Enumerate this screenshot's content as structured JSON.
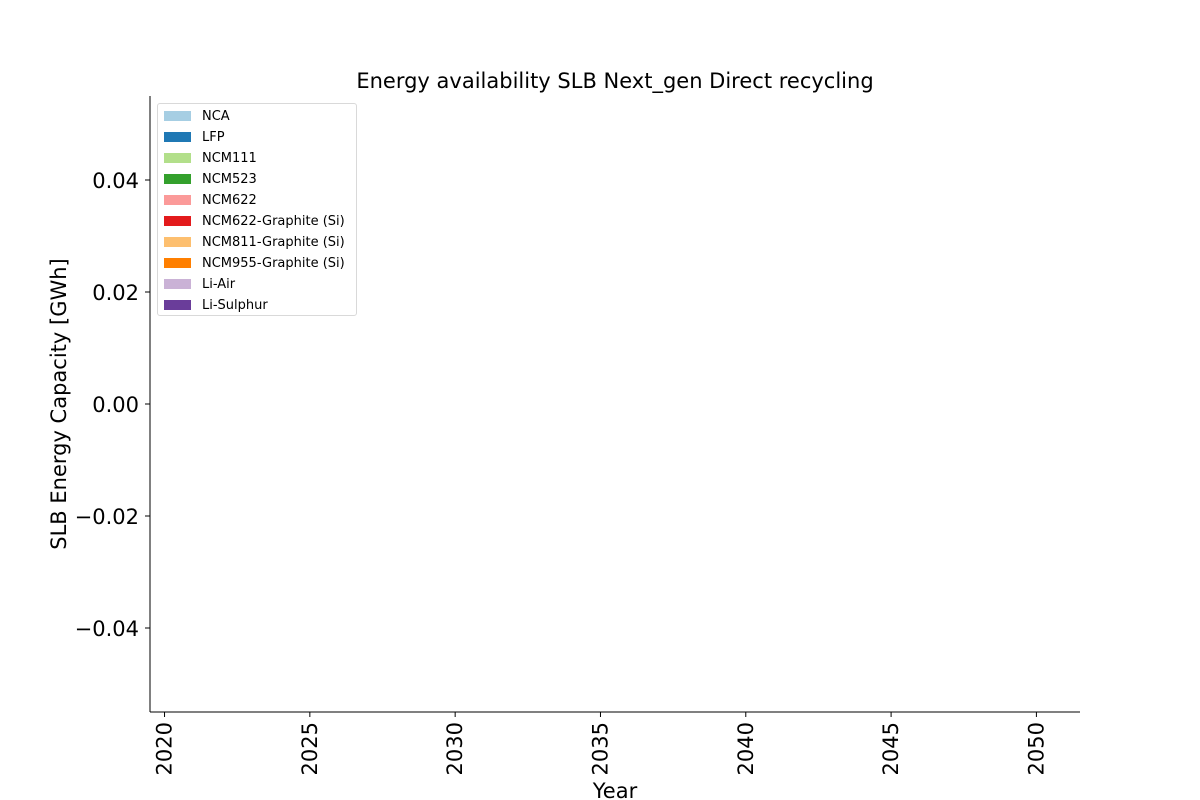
{
  "chart_data": {
    "type": "area",
    "title": "Energy availability SLB Next_gen Direct recycling",
    "xlabel": "Year",
    "ylabel": "SLB Energy Capacity [GWh]",
    "xlim": [
      2019.5,
      2051.5
    ],
    "ylim": [
      -0.055,
      0.055
    ],
    "xticks": [
      2020,
      2025,
      2030,
      2035,
      2040,
      2045,
      2050
    ],
    "xtick_labels": [
      "2020",
      "2025",
      "2030",
      "2035",
      "2040",
      "2045",
      "2050"
    ],
    "yticks": [
      -0.04,
      -0.02,
      0.0,
      0.02,
      0.04
    ],
    "ytick_labels": [
      "−0.04",
      "−0.02",
      "0.00",
      "0.02",
      "0.04"
    ],
    "grid": false,
    "legend_position": "top-left",
    "series": [
      {
        "name": "NCA",
        "color": "#a6cee3",
        "values": []
      },
      {
        "name": "LFP",
        "color": "#1f78b4",
        "values": []
      },
      {
        "name": "NCM111",
        "color": "#b2df8a",
        "values": []
      },
      {
        "name": "NCM523",
        "color": "#33a02c",
        "values": []
      },
      {
        "name": "NCM622",
        "color": "#fb9a99",
        "values": []
      },
      {
        "name": "NCM622-Graphite (Si)",
        "color": "#e31a1c",
        "values": []
      },
      {
        "name": "NCM811-Graphite (Si)",
        "color": "#fdbf6f",
        "values": []
      },
      {
        "name": "NCM955-Graphite (Si)",
        "color": "#ff7f00",
        "values": []
      },
      {
        "name": "Li-Air",
        "color": "#cab2d6",
        "values": []
      },
      {
        "name": "Li-Sulphur",
        "color": "#6a3d9a",
        "values": []
      }
    ]
  }
}
